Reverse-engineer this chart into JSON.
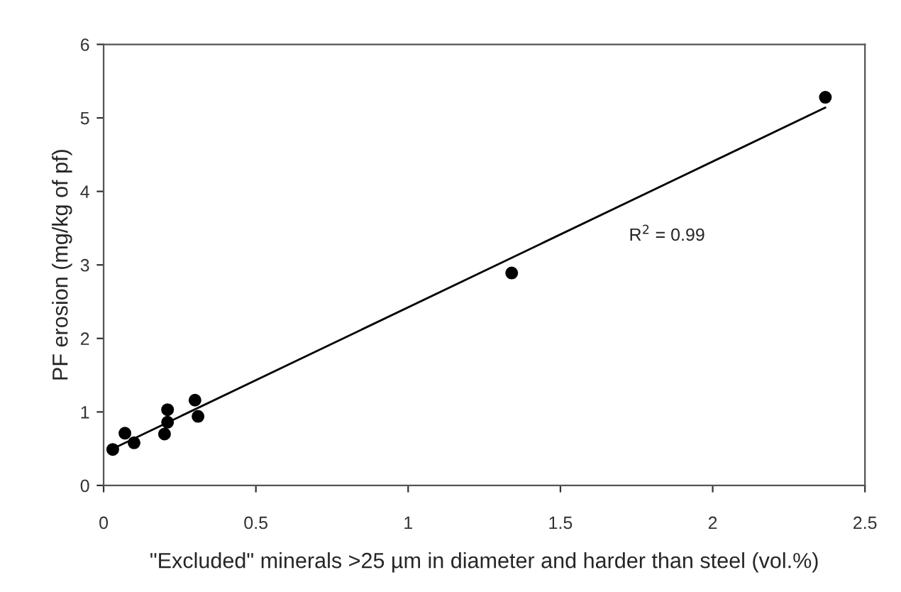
{
  "chart_data": {
    "type": "scatter",
    "xlabel": "\"Excluded\" minerals >25 µm in diameter and harder than steel (vol.%)",
    "ylabel": "PF erosion (mg/kg of pf)",
    "series": [
      {
        "color": "#000000",
        "x": [
          0.03,
          0.07,
          0.1,
          0.2,
          0.21,
          0.21,
          0.3,
          0.31,
          1.34,
          2.37
        ],
        "values": [
          0.49,
          0.71,
          0.58,
          0.7,
          0.86,
          1.03,
          1.16,
          0.94,
          2.89,
          5.28
        ],
        "marker": "circle"
      },
      {
        "type": "line",
        "color": "#000000",
        "x": [
          0.02,
          2.37
        ],
        "values": [
          0.48,
          5.14
        ],
        "marker": "none"
      }
    ],
    "annotations": [
      "R$^{2}$ = 0.99"
    ],
    "xlim": [
      0,
      2.5
    ],
    "xticks": [
      0,
      0.5,
      1,
      1.5,
      2,
      2.5
    ],
    "ylim": [
      0,
      6
    ],
    "yticks": [
      0,
      1,
      2,
      3,
      4,
      5,
      6
    ],
    "grid": false,
    "legend": false
  }
}
